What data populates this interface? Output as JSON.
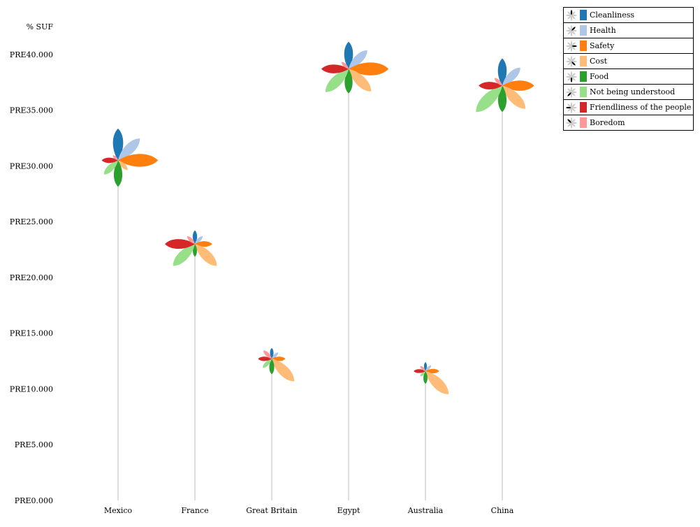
{
  "chart_data": {
    "type": "flower",
    "title": "",
    "ylabel": "% SUF",
    "ylim": [
      0,
      42.5
    ],
    "y_tick_values": [
      0,
      5,
      10,
      15,
      20,
      25,
      30,
      35,
      40
    ],
    "y_tick_labels": [
      "PRE0.000",
      "PRE5.000",
      "PRE10.000",
      "PRE15.000",
      "PRE20.000",
      "PRE25.000",
      "PRE30.000",
      "PRE35.000",
      "PRE40.000"
    ],
    "categories": [
      "Mexico",
      "France",
      "Great Britain",
      "Egypt",
      "Australia",
      "China"
    ],
    "y_values": [
      30.5,
      23.0,
      12.7,
      38.7,
      11.6,
      37.2
    ],
    "series": [
      {
        "name": "Cleanliness",
        "color": "#1f77b4",
        "values": [
          3.5,
          1.5,
          1.2,
          3.0,
          1.0,
          3.0
        ]
      },
      {
        "name": "Health",
        "color": "#aec7e8",
        "values": [
          3.4,
          1.2,
          1.0,
          2.9,
          0.9,
          2.8
        ]
      },
      {
        "name": "Safety",
        "color": "#ff7f0e",
        "values": [
          4.4,
          1.9,
          1.5,
          4.4,
          1.5,
          3.5
        ]
      },
      {
        "name": "Cost",
        "color": "#ffbb78",
        "values": [
          1.5,
          3.4,
          3.5,
          3.5,
          3.6,
          3.6
        ]
      },
      {
        "name": "Food",
        "color": "#2ca02c",
        "values": [
          2.9,
          1.4,
          1.7,
          2.7,
          1.4,
          2.9
        ]
      },
      {
        "name": "Not being understood",
        "color": "#98df8a",
        "values": [
          2.2,
          3.4,
          1.4,
          3.6,
          0.8,
          4.1
        ]
      },
      {
        "name": "Friendliness of the people",
        "color": "#d62728",
        "values": [
          1.8,
          3.3,
          1.5,
          3.0,
          1.3,
          2.6
        ]
      },
      {
        "name": "Boredom",
        "color": "#ff9896",
        "values": [
          0.8,
          1.2,
          1.3,
          1.1,
          0.8,
          1.2
        ]
      }
    ]
  }
}
